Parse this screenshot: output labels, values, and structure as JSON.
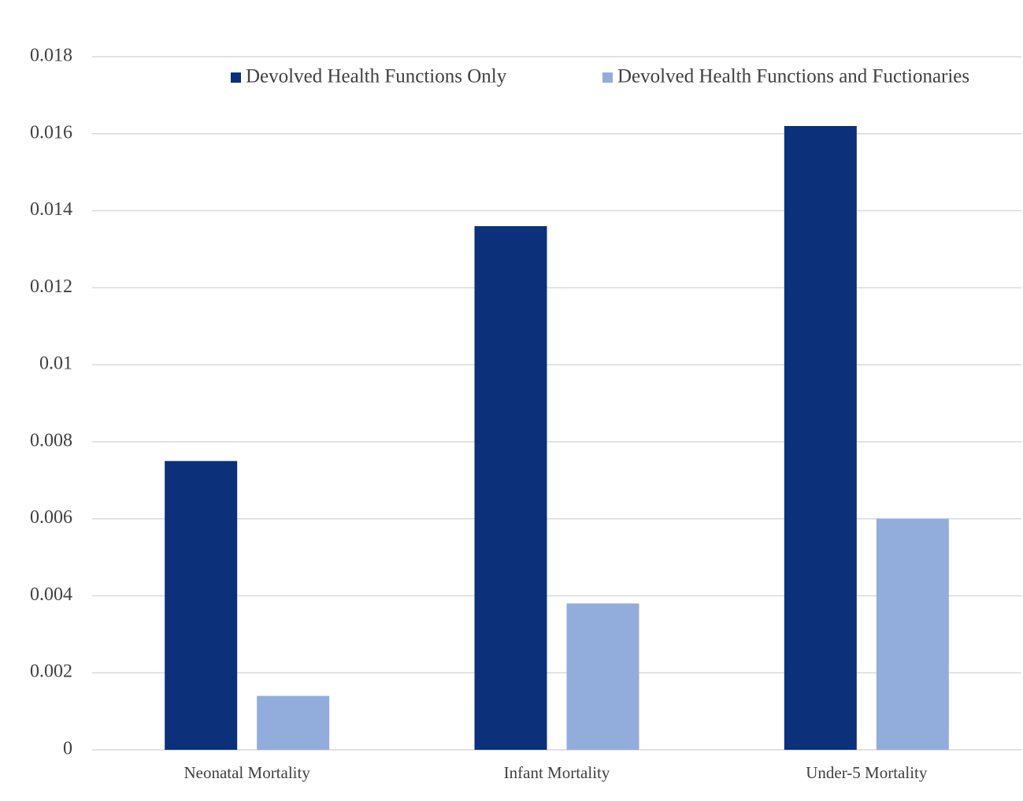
{
  "chart_data": {
    "type": "bar",
    "categories": [
      "Neonatal Mortality",
      "Infant Mortality",
      "Under-5 Mortality"
    ],
    "series": [
      {
        "name": "Devolved Health Functions Only",
        "color": "#0c307a",
        "values": [
          0.0075,
          0.0136,
          0.0162
        ]
      },
      {
        "name": "Devolved Health Functions and Fuctionaries",
        "color": "#92acdc",
        "values": [
          0.0014,
          0.0038,
          0.006
        ]
      }
    ],
    "ylim": [
      0,
      0.018
    ],
    "yticks": [
      0,
      0.002,
      0.004,
      0.006,
      0.008,
      0.01,
      0.012,
      0.014,
      0.016,
      0.018
    ],
    "grid": true,
    "legend": "top"
  }
}
